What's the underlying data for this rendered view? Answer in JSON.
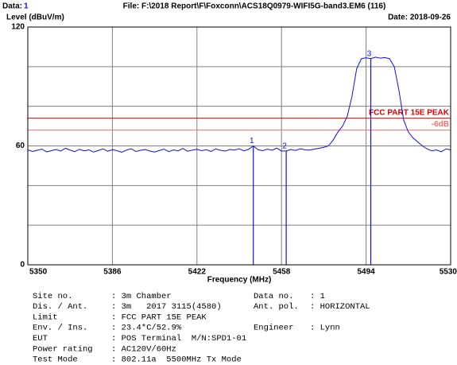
{
  "chart_data": {
    "type": "line",
    "data_label": "Data:",
    "data_no": "1",
    "file": "File: F:\\2018 Report\\F\\Foxconn\\ACS18Q0979-WIFI5G-band3.EM6  (116)",
    "ylabel": "Level (dBuV/m)",
    "date": "Date: 2018-09-26",
    "xlabel": "Frequency (MHz)",
    "xlim": [
      5350,
      5530
    ],
    "xticks": [
      5350,
      5386,
      5422,
      5458,
      5494,
      5530
    ],
    "ylim": [
      0,
      120
    ],
    "yticks": [
      0,
      60,
      120
    ],
    "ygridlines": [
      0,
      20,
      40,
      60,
      80,
      100,
      120
    ],
    "grid": true,
    "x": [
      5350,
      5352,
      5354,
      5356,
      5358,
      5360,
      5362,
      5364,
      5366,
      5368,
      5370,
      5372,
      5374,
      5376,
      5378,
      5380,
      5382,
      5384,
      5386,
      5388,
      5390,
      5392,
      5394,
      5396,
      5398,
      5400,
      5402,
      5404,
      5406,
      5408,
      5410,
      5412,
      5414,
      5416,
      5418,
      5420,
      5422,
      5424,
      5426,
      5428,
      5430,
      5432,
      5434,
      5436,
      5438,
      5440,
      5442,
      5444,
      5446,
      5448,
      5450,
      5452,
      5454,
      5456,
      5458,
      5460,
      5462,
      5464,
      5466,
      5468,
      5470,
      5472,
      5474,
      5476,
      5478,
      5480,
      5482,
      5484,
      5486,
      5488,
      5490,
      5492,
      5494,
      5496,
      5498,
      5500,
      5502,
      5504,
      5506,
      5508,
      5510,
      5512,
      5514,
      5516,
      5518,
      5520,
      5522,
      5524,
      5526,
      5528,
      5530
    ],
    "series": [
      {
        "name": "Trace",
        "color": "#1010e0",
        "values": [
          58,
          57.2,
          57.8,
          58.4,
          57,
          57.6,
          58.2,
          57.4,
          58.8,
          57.9,
          57.1,
          58.3,
          57.5,
          58,
          56.9,
          57.7,
          58.5,
          57.3,
          58.1,
          57.6,
          56.8,
          57.9,
          58.6,
          57.2,
          57.8,
          58.2,
          57.4,
          56.9,
          57.7,
          58.4,
          57.1,
          58,
          57.5,
          58.7,
          57.3,
          57.9,
          58.3,
          57.6,
          58.1,
          57.2,
          58.5,
          57.8,
          57.4,
          58.2,
          57.9,
          58.6,
          57.5,
          58.3,
          60,
          58.1,
          57.6,
          58.4,
          57.8,
          58.9,
          57.4,
          57.5,
          58.2,
          57.7,
          58.6,
          58,
          57.9,
          58.4,
          58.8,
          59.3,
          60,
          63,
          67,
          70,
          75,
          85,
          99,
          104,
          104.5,
          104,
          104.8,
          104.3,
          104.6,
          104,
          100,
          88,
          73,
          67,
          64,
          62,
          60,
          58.5,
          57.5,
          58,
          57,
          58.5,
          58
        ]
      }
    ],
    "limits": [
      {
        "label": "FCC PART 15E PEAK",
        "value": 74,
        "color": "#e00000"
      },
      {
        "label": "-6dB",
        "value": 68,
        "color": "#f07070"
      }
    ],
    "markers": [
      {
        "label": "1",
        "x": 5446,
        "value": 60
      },
      {
        "label": "2",
        "x": 5460,
        "value": 57.5
      },
      {
        "label": "3",
        "x": 5496,
        "value": 104
      }
    ],
    "info_left": [
      {
        "label": "Site no.",
        "value": ": 3m Chamber"
      },
      {
        "label": "Dis. / Ant.",
        "value": ": 3m   2017 3115(4580)"
      },
      {
        "label": "Limit",
        "value": ": FCC PART 15E PEAK"
      },
      {
        "label": "Env. / Ins.",
        "value": ": 23.4*C/52.9%"
      },
      {
        "label": "EUT",
        "value": ": POS Terminal  M/N:SPD1-01"
      },
      {
        "label": "Power rating",
        "value": ": AC120V/60Hz"
      },
      {
        "label": "Test Mode",
        "value": ": 802.11a  5500MHz Tx Mode"
      }
    ],
    "info_right": [
      {
        "label": "Data no.",
        "value": ": 1",
        "row": 0
      },
      {
        "label": "Ant. pol.",
        "value": ": HORIZONTAL",
        "row": 1
      },
      {
        "label": "Engineer",
        "value": ": Lynn",
        "row": 3
      }
    ]
  }
}
